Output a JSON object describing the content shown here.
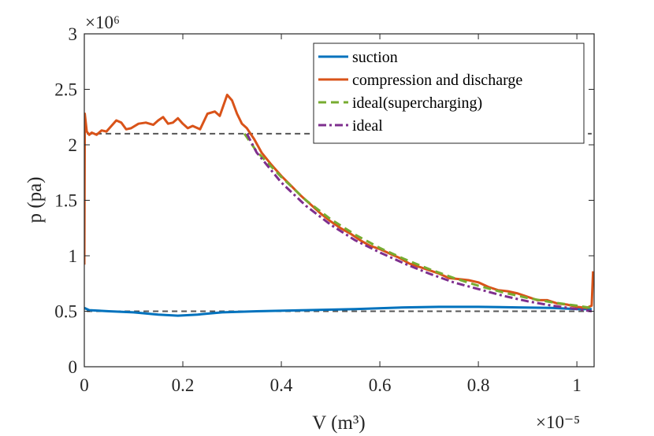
{
  "chart_data": {
    "type": "line",
    "xlabel": "V (m³)",
    "ylabel": "p (pa)",
    "x_multiplier_label": "×10⁻⁵",
    "y_multiplier_label": "×10⁶",
    "xlim": [
      0,
      1.035
    ],
    "ylim": [
      0,
      3
    ],
    "xticks": [
      0,
      0.2,
      0.4,
      0.6,
      0.8,
      1
    ],
    "yticks": [
      0,
      0.5,
      1,
      1.5,
      2,
      2.5,
      3
    ],
    "xtick_labels": [
      "0",
      "0.2",
      "0.4",
      "0.6",
      "0.8",
      "1"
    ],
    "ytick_labels": [
      "0",
      "0.5",
      "1",
      "1.5",
      "2",
      "2.5",
      "3"
    ],
    "grid": false,
    "legend_position": "top-right",
    "reference_lines": [
      {
        "y": 2.1,
        "style": "dashed",
        "color": "#555555"
      },
      {
        "y": 0.5,
        "style": "dashed",
        "color": "#555555"
      }
    ],
    "series": [
      {
        "name": "suction",
        "color": "#0072BD",
        "dash": "",
        "points": [
          [
            0,
            0.53
          ],
          [
            0.01,
            0.51
          ],
          [
            0.05,
            0.5
          ],
          [
            0.1,
            0.49
          ],
          [
            0.15,
            0.47
          ],
          [
            0.19,
            0.46
          ],
          [
            0.23,
            0.47
          ],
          [
            0.28,
            0.49
          ],
          [
            0.35,
            0.5
          ],
          [
            0.45,
            0.51
          ],
          [
            0.55,
            0.52
          ],
          [
            0.65,
            0.535
          ],
          [
            0.72,
            0.54
          ],
          [
            0.8,
            0.54
          ],
          [
            0.88,
            0.535
          ],
          [
            0.95,
            0.53
          ],
          [
            1.0,
            0.52
          ],
          [
            1.03,
            0.52
          ]
        ]
      },
      {
        "name": "compression and discharge",
        "color": "#D95319",
        "dash": "",
        "points": [
          [
            0,
            0.92
          ],
          [
            0.001,
            2.28
          ],
          [
            0.005,
            2.12
          ],
          [
            0.01,
            2.09
          ],
          [
            0.015,
            2.11
          ],
          [
            0.025,
            2.09
          ],
          [
            0.035,
            2.13
          ],
          [
            0.045,
            2.12
          ],
          [
            0.055,
            2.17
          ],
          [
            0.065,
            2.22
          ],
          [
            0.075,
            2.2
          ],
          [
            0.085,
            2.14
          ],
          [
            0.095,
            2.15
          ],
          [
            0.11,
            2.19
          ],
          [
            0.125,
            2.2
          ],
          [
            0.14,
            2.18
          ],
          [
            0.15,
            2.22
          ],
          [
            0.16,
            2.25
          ],
          [
            0.17,
            2.19
          ],
          [
            0.18,
            2.2
          ],
          [
            0.19,
            2.24
          ],
          [
            0.2,
            2.19
          ],
          [
            0.21,
            2.15
          ],
          [
            0.22,
            2.17
          ],
          [
            0.235,
            2.14
          ],
          [
            0.25,
            2.28
          ],
          [
            0.265,
            2.3
          ],
          [
            0.275,
            2.26
          ],
          [
            0.29,
            2.45
          ],
          [
            0.3,
            2.4
          ],
          [
            0.31,
            2.28
          ],
          [
            0.32,
            2.19
          ],
          [
            0.33,
            2.15
          ],
          [
            0.345,
            2.05
          ],
          [
            0.36,
            1.93
          ],
          [
            0.38,
            1.82
          ],
          [
            0.4,
            1.72
          ],
          [
            0.42,
            1.63
          ],
          [
            0.44,
            1.54
          ],
          [
            0.46,
            1.46
          ],
          [
            0.48,
            1.38
          ],
          [
            0.5,
            1.31
          ],
          [
            0.52,
            1.25
          ],
          [
            0.54,
            1.2
          ],
          [
            0.56,
            1.14
          ],
          [
            0.58,
            1.09
          ],
          [
            0.6,
            1.06
          ],
          [
            0.62,
            1.02
          ],
          [
            0.64,
            0.98
          ],
          [
            0.66,
            0.93
          ],
          [
            0.68,
            0.9
          ],
          [
            0.7,
            0.87
          ],
          [
            0.72,
            0.84
          ],
          [
            0.74,
            0.8
          ],
          [
            0.76,
            0.79
          ],
          [
            0.78,
            0.78
          ],
          [
            0.8,
            0.76
          ],
          [
            0.82,
            0.72
          ],
          [
            0.84,
            0.69
          ],
          [
            0.86,
            0.68
          ],
          [
            0.88,
            0.66
          ],
          [
            0.9,
            0.63
          ],
          [
            0.92,
            0.6
          ],
          [
            0.94,
            0.6
          ],
          [
            0.96,
            0.57
          ],
          [
            0.98,
            0.56
          ],
          [
            1.0,
            0.54
          ],
          [
            1.02,
            0.53
          ],
          [
            1.03,
            0.55
          ],
          [
            1.033,
            0.86
          ]
        ]
      },
      {
        "name": "ideal(supercharging)",
        "color": "#77AC30",
        "dash": "10,6",
        "points": [
          [
            0.325,
            2.1
          ],
          [
            0.35,
            1.94
          ],
          [
            0.4,
            1.71
          ],
          [
            0.45,
            1.5
          ],
          [
            0.5,
            1.33
          ],
          [
            0.55,
            1.19
          ],
          [
            0.6,
            1.07
          ],
          [
            0.65,
            0.97
          ],
          [
            0.7,
            0.88
          ],
          [
            0.75,
            0.8
          ],
          [
            0.8,
            0.73
          ],
          [
            0.85,
            0.67
          ],
          [
            0.9,
            0.62
          ],
          [
            0.95,
            0.58
          ],
          [
            1.0,
            0.55
          ],
          [
            1.03,
            0.53
          ]
        ]
      },
      {
        "name": "ideal",
        "color": "#7E2F8E",
        "dash": "10,4,3,4",
        "points": [
          [
            0.33,
            2.1
          ],
          [
            0.35,
            1.93
          ],
          [
            0.4,
            1.66
          ],
          [
            0.45,
            1.45
          ],
          [
            0.5,
            1.28
          ],
          [
            0.55,
            1.14
          ],
          [
            0.6,
            1.03
          ],
          [
            0.65,
            0.93
          ],
          [
            0.7,
            0.84
          ],
          [
            0.75,
            0.76
          ],
          [
            0.8,
            0.7
          ],
          [
            0.85,
            0.64
          ],
          [
            0.9,
            0.59
          ],
          [
            0.95,
            0.55
          ],
          [
            1.0,
            0.52
          ],
          [
            1.03,
            0.5
          ]
        ]
      }
    ]
  }
}
